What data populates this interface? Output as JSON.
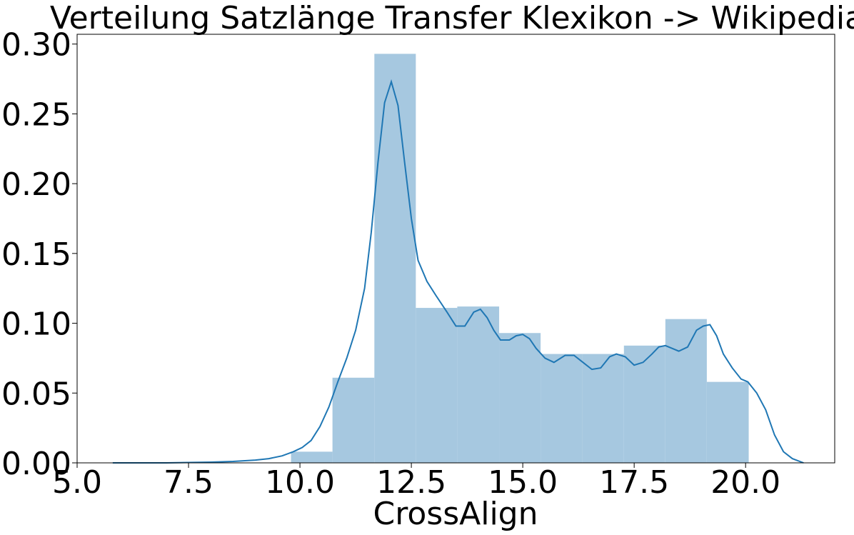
{
  "chart_data": {
    "type": "bar",
    "title": "Verteilung Satzlänge Transfer Klexikon -> Wikipedia",
    "xlabel": "CrossAlign",
    "ylabel": "",
    "xlim": [
      5.0,
      22.0
    ],
    "ylim": [
      0.0,
      0.307
    ],
    "grid": false,
    "x_ticks": [
      "5.0",
      "7.5",
      "10.0",
      "12.5",
      "15.0",
      "17.5",
      "20.0"
    ],
    "x_tick_values": [
      5.0,
      7.5,
      10.0,
      12.5,
      15.0,
      17.5,
      20.0
    ],
    "y_ticks": [
      "0.00",
      "0.05",
      "0.10",
      "0.15",
      "0.20",
      "0.25",
      "0.30"
    ],
    "y_tick_values": [
      0.0,
      0.05,
      0.1,
      0.15,
      0.2,
      0.25,
      0.3
    ],
    "histogram": {
      "color": "#a6c8e0",
      "bins": [
        {
          "x0": 9.8,
          "x1": 10.73,
          "density": 0.008
        },
        {
          "x0": 10.73,
          "x1": 11.67,
          "density": 0.061
        },
        {
          "x0": 11.67,
          "x1": 12.6,
          "density": 0.293
        },
        {
          "x0": 12.6,
          "x1": 13.53,
          "density": 0.111
        },
        {
          "x0": 13.53,
          "x1": 14.47,
          "density": 0.112
        },
        {
          "x0": 14.47,
          "x1": 15.4,
          "density": 0.093
        },
        {
          "x0": 15.4,
          "x1": 16.33,
          "density": 0.078
        },
        {
          "x0": 16.33,
          "x1": 17.27,
          "density": 0.078
        },
        {
          "x0": 17.27,
          "x1": 18.2,
          "density": 0.084
        },
        {
          "x0": 18.2,
          "x1": 19.13,
          "density": 0.103
        },
        {
          "x0": 19.13,
          "x1": 20.07,
          "density": 0.058
        }
      ]
    },
    "kde": {
      "color": "#1f77b4",
      "x": [
        5.8,
        7.0,
        8.0,
        8.5,
        9.0,
        9.3,
        9.6,
        9.85,
        10.05,
        10.25,
        10.45,
        10.65,
        10.85,
        11.05,
        11.25,
        11.45,
        11.6,
        11.75,
        11.9,
        12.05,
        12.2,
        12.35,
        12.5,
        12.65,
        12.85,
        13.05,
        13.3,
        13.5,
        13.7,
        13.9,
        14.05,
        14.2,
        14.35,
        14.5,
        14.7,
        14.85,
        15.0,
        15.15,
        15.3,
        15.5,
        15.7,
        15.95,
        16.15,
        16.35,
        16.55,
        16.75,
        16.95,
        17.1,
        17.3,
        17.5,
        17.7,
        17.9,
        18.05,
        18.2,
        18.35,
        18.5,
        18.7,
        18.9,
        19.05,
        19.2,
        19.35,
        19.5,
        19.7,
        19.9,
        20.05,
        20.25,
        20.45,
        20.65,
        20.85,
        21.05,
        21.3
      ],
      "y": [
        0.0,
        0.0,
        0.0005,
        0.001,
        0.002,
        0.003,
        0.005,
        0.008,
        0.011,
        0.016,
        0.026,
        0.04,
        0.058,
        0.075,
        0.095,
        0.125,
        0.165,
        0.215,
        0.258,
        0.273,
        0.256,
        0.215,
        0.175,
        0.145,
        0.13,
        0.12,
        0.108,
        0.098,
        0.098,
        0.108,
        0.11,
        0.104,
        0.095,
        0.088,
        0.088,
        0.091,
        0.092,
        0.089,
        0.082,
        0.075,
        0.072,
        0.077,
        0.077,
        0.072,
        0.067,
        0.068,
        0.076,
        0.078,
        0.076,
        0.07,
        0.072,
        0.078,
        0.083,
        0.084,
        0.082,
        0.08,
        0.083,
        0.095,
        0.098,
        0.099,
        0.091,
        0.078,
        0.068,
        0.06,
        0.058,
        0.05,
        0.038,
        0.02,
        0.008,
        0.003,
        0.0
      ]
    }
  }
}
